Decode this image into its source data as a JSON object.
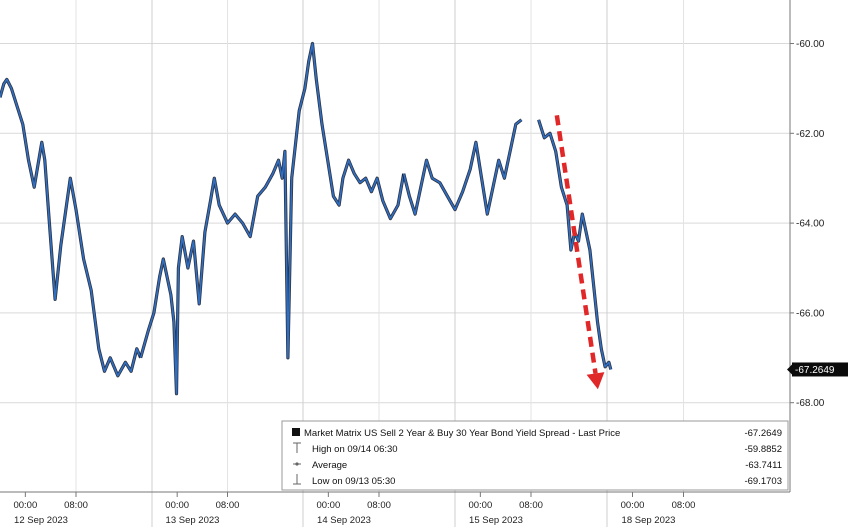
{
  "chart_data": {
    "type": "line",
    "title": "",
    "xlabel": "",
    "ylabel": "",
    "ylim": [
      -69.5,
      -58.6
    ],
    "y_ticks": [
      -60,
      -62,
      -64,
      -66,
      -68
    ],
    "y_tick_labels": [
      "-60.00",
      "-62.00",
      "-64.00",
      "-66.00",
      "-68.00"
    ],
    "last_value_label": "-67.2649",
    "x_tick_labels": [
      "00:00",
      "08:00",
      "00:00",
      "08:00",
      "00:00",
      "08:00",
      "00:00",
      "08:00",
      "00:00",
      "08:00"
    ],
    "day_labels": [
      "12 Sep 2023",
      "13 Sep 2023",
      "14 Sep 2023",
      "15 Sep 2023",
      "18 Sep 2023"
    ],
    "series": [
      {
        "name": "Market Matrix US Sell 2 Year & Buy 30 Year Bond Yield Spread - Last Price",
        "color": "#2f6fc4",
        "segments": [
          [
            {
              "t": 0.0,
              "v": -61.2
            },
            {
              "t": 0.01,
              "v": -60.9
            },
            {
              "t": 0.018,
              "v": -60.8
            },
            {
              "t": 0.03,
              "v": -61.0
            },
            {
              "t": 0.045,
              "v": -61.4
            },
            {
              "t": 0.06,
              "v": -61.8
            },
            {
              "t": 0.075,
              "v": -62.6
            },
            {
              "t": 0.09,
              "v": -63.2
            },
            {
              "t": 0.1,
              "v": -62.7
            },
            {
              "t": 0.11,
              "v": -62.2
            },
            {
              "t": 0.118,
              "v": -62.6
            },
            {
              "t": 0.13,
              "v": -64.0
            },
            {
              "t": 0.145,
              "v": -65.7
            },
            {
              "t": 0.16,
              "v": -64.5
            },
            {
              "t": 0.175,
              "v": -63.6
            },
            {
              "t": 0.185,
              "v": -63.0
            },
            {
              "t": 0.2,
              "v": -63.7
            },
            {
              "t": 0.22,
              "v": -64.8
            },
            {
              "t": 0.24,
              "v": -65.5
            },
            {
              "t": 0.26,
              "v": -66.8
            },
            {
              "t": 0.275,
              "v": -67.3
            },
            {
              "t": 0.29,
              "v": -67.0
            },
            {
              "t": 0.31,
              "v": -67.4
            },
            {
              "t": 0.33,
              "v": -67.1
            },
            {
              "t": 0.345,
              "v": -67.3
            },
            {
              "t": 0.36,
              "v": -66.8
            },
            {
              "t": 0.37,
              "v": -67.0
            }
          ],
          [
            {
              "t": 0.37,
              "v": -67.0
            },
            {
              "t": 0.39,
              "v": -66.4
            },
            {
              "t": 0.405,
              "v": -66.0
            },
            {
              "t": 0.42,
              "v": -65.2
            },
            {
              "t": 0.43,
              "v": -64.8
            },
            {
              "t": 0.44,
              "v": -65.2
            },
            {
              "t": 0.45,
              "v": -65.6
            },
            {
              "t": 0.458,
              "v": -66.2
            },
            {
              "t": 0.465,
              "v": -67.8
            },
            {
              "t": 0.47,
              "v": -65.0
            },
            {
              "t": 0.48,
              "v": -64.3
            },
            {
              "t": 0.495,
              "v": -65.0
            },
            {
              "t": 0.51,
              "v": -64.4
            },
            {
              "t": 0.525,
              "v": -65.8
            },
            {
              "t": 0.54,
              "v": -64.2
            },
            {
              "t": 0.555,
              "v": -63.5
            },
            {
              "t": 0.565,
              "v": -63.0
            },
            {
              "t": 0.578,
              "v": -63.6
            },
            {
              "t": 0.6,
              "v": -64.0
            },
            {
              "t": 0.62,
              "v": -63.8
            },
            {
              "t": 0.64,
              "v": -64.0
            },
            {
              "t": 0.66,
              "v": -64.3
            },
            {
              "t": 0.68,
              "v": -63.4
            },
            {
              "t": 0.7,
              "v": -63.2
            },
            {
              "t": 0.72,
              "v": -62.9
            },
            {
              "t": 0.735,
              "v": -62.6
            },
            {
              "t": 0.745,
              "v": -63.0
            },
            {
              "t": 0.752,
              "v": -62.4
            },
            {
              "t": 0.76,
              "v": -67.0
            },
            {
              "t": 0.77,
              "v": -63.0
            }
          ],
          [
            {
              "t": 0.77,
              "v": -63.0
            },
            {
              "t": 0.79,
              "v": -61.5
            },
            {
              "t": 0.805,
              "v": -61.0
            },
            {
              "t": 0.815,
              "v": -60.4
            },
            {
              "t": 0.825,
              "v": -60.0
            },
            {
              "t": 0.835,
              "v": -60.8
            },
            {
              "t": 0.85,
              "v": -61.8
            },
            {
              "t": 0.865,
              "v": -62.6
            },
            {
              "t": 0.88,
              "v": -63.4
            },
            {
              "t": 0.895,
              "v": -63.6
            },
            {
              "t": 0.905,
              "v": -63.0
            },
            {
              "t": 0.92,
              "v": -62.6
            },
            {
              "t": 0.935,
              "v": -62.9
            },
            {
              "t": 0.95,
              "v": -63.1
            },
            {
              "t": 0.965,
              "v": -63.0
            },
            {
              "t": 0.98,
              "v": -63.3
            },
            {
              "t": 0.995,
              "v": -63.0
            },
            {
              "t": 1.01,
              "v": -63.5
            },
            {
              "t": 1.03,
              "v": -63.9
            },
            {
              "t": 1.05,
              "v": -63.6
            },
            {
              "t": 1.065,
              "v": -62.9
            }
          ],
          [
            {
              "t": 1.065,
              "v": -62.9
            },
            {
              "t": 1.08,
              "v": -63.4
            },
            {
              "t": 1.095,
              "v": -63.8
            },
            {
              "t": 1.11,
              "v": -63.2
            },
            {
              "t": 1.125,
              "v": -62.6
            },
            {
              "t": 1.14,
              "v": -63.0
            },
            {
              "t": 1.16,
              "v": -63.1
            },
            {
              "t": 1.18,
              "v": -63.4
            },
            {
              "t": 1.2,
              "v": -63.7
            },
            {
              "t": 1.22,
              "v": -63.3
            },
            {
              "t": 1.24,
              "v": -62.8
            },
            {
              "t": 1.255,
              "v": -62.2
            },
            {
              "t": 1.27,
              "v": -63.0
            },
            {
              "t": 1.285,
              "v": -63.8
            },
            {
              "t": 1.3,
              "v": -63.2
            },
            {
              "t": 1.315,
              "v": -62.6
            },
            {
              "t": 1.33,
              "v": -63.0
            },
            {
              "t": 1.345,
              "v": -62.4
            },
            {
              "t": 1.36,
              "v": -61.8
            },
            {
              "t": 1.375,
              "v": -61.7
            }
          ],
          [
            {
              "t": 1.42,
              "v": -61.7
            },
            {
              "t": 1.435,
              "v": -62.1
            },
            {
              "t": 1.45,
              "v": -62.0
            },
            {
              "t": 1.465,
              "v": -62.4
            },
            {
              "t": 1.48,
              "v": -63.2
            },
            {
              "t": 1.495,
              "v": -63.6
            },
            {
              "t": 1.505,
              "v": -64.6
            },
            {
              "t": 1.515,
              "v": -64.2
            },
            {
              "t": 1.525,
              "v": -64.4
            },
            {
              "t": 1.535,
              "v": -63.8
            },
            {
              "t": 1.545,
              "v": -64.2
            },
            {
              "t": 1.555,
              "v": -64.6
            },
            {
              "t": 1.565,
              "v": -65.4
            },
            {
              "t": 1.575,
              "v": -66.2
            },
            {
              "t": 1.585,
              "v": -66.8
            },
            {
              "t": 1.595,
              "v": -67.2
            },
            {
              "t": 1.605,
              "v": -67.1
            },
            {
              "t": 1.61,
              "v": -67.26
            }
          ]
        ]
      }
    ],
    "annotation_arrow": {
      "color": "#e02828",
      "from": {
        "t": 1.468,
        "v": -61.6
      },
      "to": {
        "t": 1.576,
        "v": -67.7
      }
    },
    "legend": {
      "placement": "bottom-right",
      "entries": [
        {
          "label": "Market Matrix US Sell 2 Year & Buy 30 Year Bond Yield Spread - Last Price",
          "value": "-67.2649"
        },
        {
          "label": "High on 09/14 06:30",
          "value": "-59.8852"
        },
        {
          "label": "Average",
          "value": "-63.7411"
        },
        {
          "label": "Low on 09/13 05:30",
          "value": "-69.1703"
        }
      ]
    },
    "colors": {
      "series": "#2f6fc4",
      "shadow": "#0a0f1e",
      "grid": "#d9d9d9",
      "last_tag": "#0b0b0b"
    },
    "grid": true
  }
}
